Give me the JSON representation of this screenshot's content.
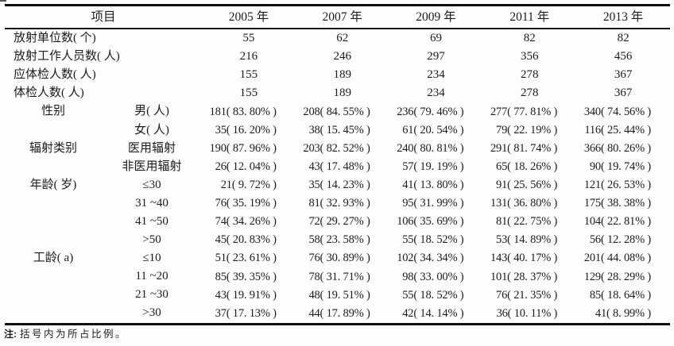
{
  "table": {
    "header": {
      "item_label": "项目",
      "years": [
        "2005 年",
        "2007 年",
        "2009 年",
        "2011 年",
        "2013 年"
      ]
    },
    "rows": [
      {
        "type": "full",
        "label": "放射单位数( 个)",
        "values": [
          "55",
          "62",
          "69",
          "82",
          "82"
        ]
      },
      {
        "type": "full",
        "label": "放射工作人员数( 人)",
        "values": [
          "216",
          "246",
          "297",
          "356",
          "456"
        ]
      },
      {
        "type": "full",
        "label": "应体检人数( 人)",
        "values": [
          "155",
          "189",
          "234",
          "278",
          "367"
        ]
      },
      {
        "type": "full",
        "label": "体检人数( 人)",
        "values": [
          "155",
          "189",
          "234",
          "278",
          "367"
        ]
      },
      {
        "type": "sub",
        "category": "性别",
        "sub": "男( 人)",
        "values": [
          "181( 83. 80% )",
          "208( 84. 55% )",
          "236( 79. 46% )",
          "277( 77. 81% )",
          "340( 74. 56% )"
        ]
      },
      {
        "type": "sub",
        "category": "",
        "sub": "女( 人)",
        "values": [
          "35( 16. 20% )",
          "38( 15. 45% )",
          "61( 20. 54% )",
          "79( 22. 19% )",
          "116( 25. 44% )"
        ]
      },
      {
        "type": "sub",
        "category": "辐射类别",
        "sub": "医用辐射",
        "values": [
          "190( 87. 96% )",
          "203( 82. 52% )",
          "240( 80. 81% )",
          "291( 81. 74% )",
          "366( 80. 26% )"
        ]
      },
      {
        "type": "sub",
        "category": "",
        "sub": "非医用辐射",
        "values": [
          "26( 12. 04% )",
          "43( 17. 48% )",
          "57( 19. 19% )",
          "65( 18. 26% )",
          "90( 19. 74% )"
        ]
      },
      {
        "type": "sub",
        "category": "年龄( 岁)",
        "sub": "≤30",
        "values": [
          "21( 9. 72% )",
          "35( 14. 23% )",
          "41( 13. 80% )",
          "91( 25. 56% )",
          "121( 26. 53% )"
        ]
      },
      {
        "type": "sub",
        "category": "",
        "sub": "31 ~40",
        "values": [
          "76( 35. 19% )",
          "81( 32. 93% )",
          "95( 31. 99% )",
          "131( 36. 80% )",
          "175( 38. 38% )"
        ]
      },
      {
        "type": "sub",
        "category": "",
        "sub": "41 ~50",
        "values": [
          "74( 34. 26% )",
          "72( 29. 27% )",
          "106( 35. 69% )",
          "81( 22. 75% )",
          "104( 22. 81% )"
        ]
      },
      {
        "type": "sub",
        "category": "",
        "sub": ">50",
        "values": [
          "45( 20. 83% )",
          "58( 23. 58% )",
          "55( 18. 52% )",
          "53( 14. 89% )",
          "56( 12. 28% )"
        ]
      },
      {
        "type": "sub",
        "category": "工龄( a)",
        "sub": "≤10",
        "values": [
          "51( 23. 61% )",
          "76( 30. 89% )",
          "102( 34. 34% )",
          "143( 40. 17% )",
          "201( 44. 08% )"
        ]
      },
      {
        "type": "sub",
        "category": "",
        "sub": "11 ~20",
        "values": [
          "85( 39. 35% )",
          "78( 31. 71% )",
          "98( 33. 00% )",
          "101( 28. 37% )",
          "129( 28. 29% )"
        ]
      },
      {
        "type": "sub",
        "category": "",
        "sub": "21 ~30",
        "values": [
          "43( 19. 91% )",
          "48( 19. 51% )",
          "55( 18. 52% )",
          "76( 21. 35% )",
          "85( 18. 64% )"
        ]
      },
      {
        "type": "sub",
        "category": "",
        "sub": ">30",
        "values": [
          "37( 17. 13% )",
          "44( 17. 89% )",
          "42( 14. 14% )",
          "36( 10. 11% )",
          "41( 8. 99% )"
        ]
      }
    ]
  },
  "note": {
    "tag": "注:",
    "text": "括号内为所占比例。"
  }
}
